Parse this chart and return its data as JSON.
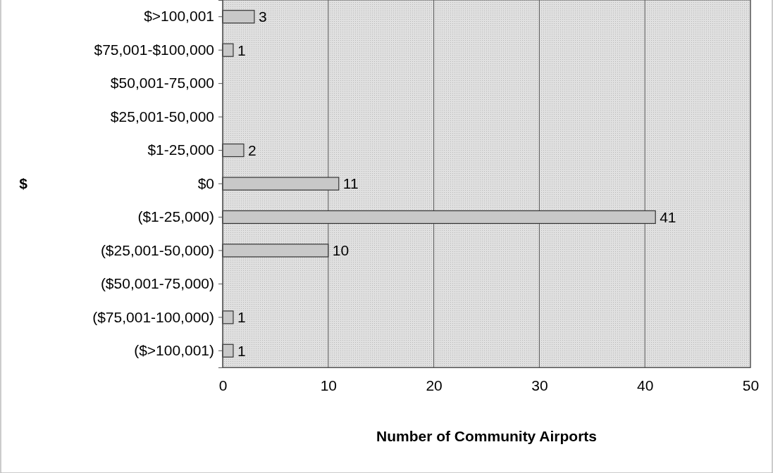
{
  "chart_data": {
    "type": "bar",
    "orientation": "horizontal",
    "xlabel": "Number of Community Airports",
    "ylabel": "$",
    "categories": [
      "$>100,001",
      "$75,001-$100,000",
      "$50,001-75,000",
      "$25,001-50,000",
      "$1-25,000",
      "$0",
      "($1-25,000)",
      "($25,001-50,000)",
      "($50,001-75,000)",
      "($75,001-100,000)",
      "($>100,001)"
    ],
    "values": [
      3,
      1,
      0,
      0,
      2,
      11,
      41,
      10,
      0,
      1,
      1
    ],
    "value_labels": [
      "3",
      "1",
      null,
      null,
      "2",
      "11",
      "41",
      "10",
      null,
      "1",
      "1"
    ],
    "color": "#c8c8c8",
    "xlim": [
      0,
      50
    ],
    "xticks": [
      0,
      10,
      20,
      30,
      40,
      50
    ],
    "grid": "x"
  }
}
